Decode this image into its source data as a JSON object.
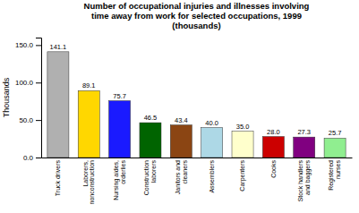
{
  "chart_data": {
    "type": "bar",
    "title": "Number of occupational injuries and illnesses involving\ntime away from work for selected occupations, 1999\n(thousands)",
    "categories": [
      "Truck drivers",
      "Laborers,\nnonconstruction",
      "Nursing aides,\norderlies",
      "Construction\nlaborers",
      "Janitors and\ncleaners",
      "Assemblers",
      "Carpenters",
      "Cooks",
      "Stock handlers\nand baggers",
      "Registered\nnurses"
    ],
    "values": [
      141.1,
      89.1,
      75.7,
      46.5,
      43.4,
      40.0,
      35.0,
      28.0,
      27.3,
      25.7
    ],
    "value_labels": [
      "141.1",
      "89.1",
      "75.7",
      "46.5",
      "43.4",
      "40.0",
      "35.0",
      "28.0",
      "27.3",
      "25.7"
    ],
    "data_labels": true,
    "colors": [
      "#b0b0b0",
      "#ffd700",
      "#1a1aff",
      "#006400",
      "#8b4513",
      "#add8e6",
      "#ffffcc",
      "#cc0000",
      "#800080",
      "#90ee90"
    ],
    "ylabel": "Thousands",
    "ylim": [
      0,
      160
    ],
    "yticks": [
      {
        "value": 0,
        "label": "0.0"
      },
      {
        "value": 50,
        "label": "50.0"
      },
      {
        "value": 100,
        "label": "100.0"
      },
      {
        "value": 150,
        "label": "150.0"
      }
    ],
    "grid": false
  }
}
